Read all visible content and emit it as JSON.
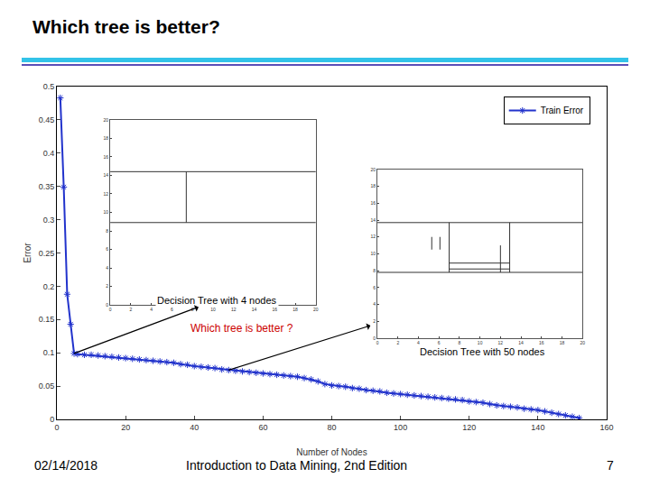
{
  "slide": {
    "title": "Which tree is better?",
    "footer": {
      "date": "02/14/2018",
      "source": "Introduction to Data Mining, 2nd Edition",
      "page": 7
    }
  },
  "chart_data": [
    {
      "type": "line",
      "x": [
        1,
        2,
        3,
        4,
        5,
        6,
        8,
        10,
        12,
        14,
        16,
        18,
        20,
        22,
        24,
        26,
        28,
        30,
        32,
        34,
        36,
        38,
        40,
        42,
        44,
        46,
        48,
        50,
        52,
        54,
        56,
        58,
        60,
        62,
        64,
        66,
        68,
        70,
        72,
        74,
        76,
        78,
        80,
        82,
        84,
        86,
        88,
        90,
        92,
        94,
        96,
        98,
        100,
        102,
        104,
        106,
        108,
        110,
        112,
        114,
        116,
        118,
        120,
        122,
        124,
        126,
        128,
        130,
        132,
        134,
        136,
        138,
        140,
        142,
        144,
        146,
        148,
        150,
        152
      ],
      "series": [
        {
          "name": "Train Error",
          "color": "#2233cc",
          "marker": "asterisk",
          "values": [
            0.483,
            0.349,
            0.188,
            0.143,
            0.099,
            0.098,
            0.097,
            0.097,
            0.096,
            0.095,
            0.094,
            0.093,
            0.092,
            0.091,
            0.09,
            0.089,
            0.088,
            0.087,
            0.086,
            0.085,
            0.083,
            0.082,
            0.08,
            0.079,
            0.078,
            0.077,
            0.075,
            0.074,
            0.073,
            0.072,
            0.071,
            0.07,
            0.069,
            0.068,
            0.067,
            0.066,
            0.065,
            0.064,
            0.062,
            0.06,
            0.057,
            0.053,
            0.051,
            0.05,
            0.049,
            0.047,
            0.046,
            0.044,
            0.043,
            0.042,
            0.04,
            0.039,
            0.038,
            0.037,
            0.036,
            0.035,
            0.034,
            0.033,
            0.032,
            0.031,
            0.03,
            0.029,
            0.027,
            0.026,
            0.025,
            0.023,
            0.021,
            0.02,
            0.019,
            0.018,
            0.016,
            0.015,
            0.014,
            0.012,
            0.01,
            0.008,
            0.006,
            0.004,
            0.002
          ]
        }
      ],
      "xlabel": "Number of Nodes",
      "ylabel": "Error",
      "xlim": [
        0,
        160
      ],
      "xticks": [
        0,
        20,
        40,
        60,
        80,
        100,
        120,
        140,
        160
      ],
      "ylim": [
        0,
        0.5
      ],
      "yticks": [
        0,
        0.05,
        0.1,
        0.15,
        0.2,
        0.25,
        0.3,
        0.35,
        0.4,
        0.45,
        0.5
      ],
      "grid": false,
      "legend": "upper right",
      "annotations": [
        {
          "text": "Decision Tree with 4 nodes",
          "x": 5,
          "y": 0.099
        },
        {
          "text": "Which tree is better ?",
          "color": "#cc0000"
        },
        {
          "text": "Decision Tree with 50 nodes",
          "x": 50,
          "y": 0.074
        }
      ]
    },
    {
      "type": "line",
      "color": "#333333",
      "grid": false,
      "xlim": [
        0,
        20
      ],
      "xticks": [
        0,
        2,
        4,
        6,
        8,
        10,
        12,
        14,
        16,
        18,
        20
      ],
      "ylim": [
        0,
        20
      ],
      "yticks": [
        0,
        2,
        4,
        6,
        8,
        10,
        12,
        14,
        16,
        18,
        20
      ],
      "segments": [
        {
          "x": [
            0,
            20
          ],
          "y": [
            14.4,
            14.4
          ]
        },
        {
          "x": [
            0,
            20
          ],
          "y": [
            8.9,
            8.9
          ]
        },
        {
          "x": [
            7.4,
            7.4
          ],
          "y": [
            8.9,
            14.4
          ]
        }
      ]
    },
    {
      "type": "line",
      "color": "#333333",
      "grid": false,
      "xlim": [
        0,
        20
      ],
      "xticks": [
        0,
        2,
        4,
        6,
        8,
        10,
        12,
        14,
        16,
        18,
        20
      ],
      "ylim": [
        0,
        20
      ],
      "yticks": [
        0,
        2,
        4,
        6,
        8,
        10,
        12,
        14,
        16,
        18,
        20
      ],
      "segments": [
        {
          "x": [
            0,
            20
          ],
          "y": [
            13.7,
            13.7
          ]
        },
        {
          "x": [
            0,
            20
          ],
          "y": [
            7.8,
            7.8
          ]
        },
        {
          "x": [
            7,
            7
          ],
          "y": [
            7.8,
            13.7
          ]
        },
        {
          "x": [
            12.9,
            12.9
          ],
          "y": [
            7.8,
            13.7
          ]
        },
        {
          "x": [
            12,
            12
          ],
          "y": [
            7.8,
            11
          ]
        },
        {
          "x": [
            5.3,
            5.3
          ],
          "y": [
            10.5,
            12
          ]
        },
        {
          "x": [
            6.1,
            6.1
          ],
          "y": [
            10.5,
            12
          ]
        },
        {
          "x": [
            7,
            12.9
          ],
          "y": [
            8.9,
            8.9
          ]
        },
        {
          "x": [
            7,
            12.9
          ],
          "y": [
            8.2,
            8.2
          ]
        }
      ]
    }
  ]
}
